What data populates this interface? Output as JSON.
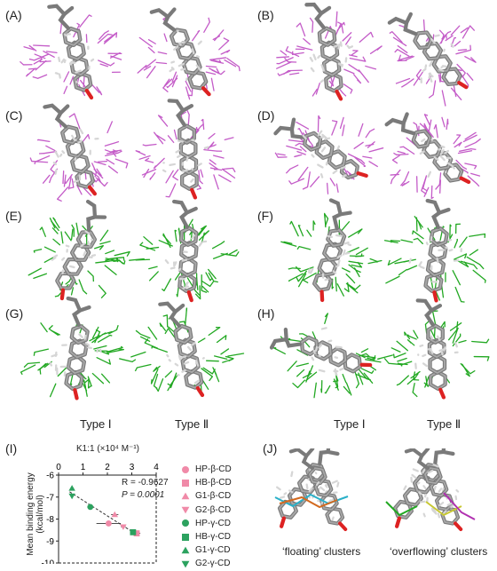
{
  "panels": [
    {
      "label": "(A)",
      "color": "#c45cc8"
    },
    {
      "label": "(B)",
      "color": "#c45cc8"
    },
    {
      "label": "(C)",
      "color": "#c45cc8"
    },
    {
      "label": "(D)",
      "color": "#c45cc8"
    },
    {
      "label": "(E)",
      "color": "#22a822"
    },
    {
      "label": "(F)",
      "color": "#22a822"
    },
    {
      "label": "(G)",
      "color": "#22a822"
    },
    {
      "label": "(H)",
      "color": "#22a822"
    }
  ],
  "type_labels": [
    "Type Ⅰ",
    "Type Ⅱ",
    "Type Ⅰ",
    "Type Ⅱ"
  ],
  "panel_I": {
    "label": "(I)",
    "chart_data": {
      "type": "scatter",
      "x_top_label": "K1:1 (×10⁴ M⁻¹)",
      "x_ticks": [
        "0",
        "1",
        "2",
        "3",
        "4"
      ],
      "xlim": [
        0,
        4
      ],
      "ylabel": "Mean binding energy (kcal/mol)",
      "y_ticks": [
        "-6",
        "-7",
        "-8",
        "-9",
        "-10"
      ],
      "ylim": [
        -10,
        -6
      ],
      "annotation_r": "R = -0.9627",
      "annotation_p": "P = 0.0001",
      "series": [
        {
          "name": "HP-β-CD",
          "marker": "circle",
          "color": "#f08aa8",
          "x": 2.05,
          "y": -8.2,
          "xerr": 0.5
        },
        {
          "name": "HB-β-CD",
          "marker": "square",
          "color": "#f08aa8",
          "x": 3.2,
          "y": -8.65,
          "xerr": 0.15
        },
        {
          "name": "G1-β-CD",
          "marker": "triangle-up",
          "color": "#f08aa8",
          "x": 2.3,
          "y": -7.8,
          "xerr": 0.15
        },
        {
          "name": "G2-β-CD",
          "marker": "triangle-down",
          "color": "#f08aa8",
          "x": 2.65,
          "y": -8.35,
          "xerr": 0.1
        },
        {
          "name": "HP-γ-CD",
          "marker": "circle",
          "color": "#2ca25f",
          "x": 1.3,
          "y": -7.45,
          "xerr": 0.12
        },
        {
          "name": "HB-γ-CD",
          "marker": "square",
          "color": "#2ca25f",
          "x": 3.05,
          "y": -8.6,
          "xerr": 0.1
        },
        {
          "name": "G1-γ-CD",
          "marker": "triangle-up",
          "color": "#2ca25f",
          "x": 0.55,
          "y": -6.6,
          "xerr": 0.05
        },
        {
          "name": "G2-γ-CD",
          "marker": "triangle-down",
          "color": "#2ca25f",
          "x": 0.55,
          "y": -6.95,
          "xerr": 0.05
        }
      ]
    }
  },
  "panel_J": {
    "label": "(J)",
    "captions": [
      "‘floating’ clusters",
      "‘overflowing’ clusters"
    ]
  }
}
